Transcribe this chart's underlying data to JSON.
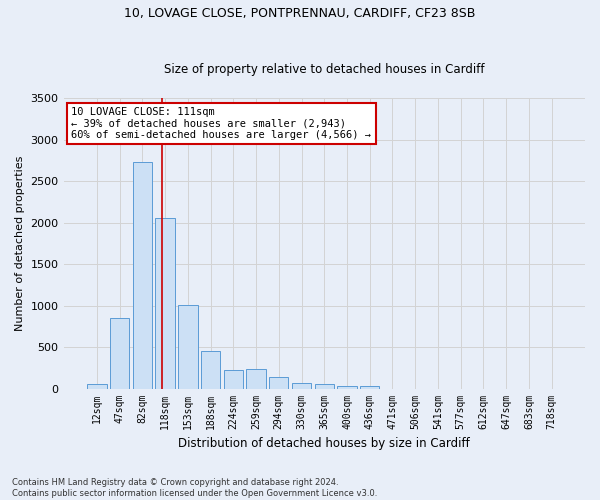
{
  "title1": "10, LOVAGE CLOSE, PONTPRENNAU, CARDIFF, CF23 8SB",
  "title2": "Size of property relative to detached houses in Cardiff",
  "xlabel": "Distribution of detached houses by size in Cardiff",
  "ylabel": "Number of detached properties",
  "footnote1": "Contains HM Land Registry data © Crown copyright and database right 2024.",
  "footnote2": "Contains public sector information licensed under the Open Government Licence v3.0.",
  "annotation_line1": "10 LOVAGE CLOSE: 111sqm",
  "annotation_line2": "← 39% of detached houses are smaller (2,943)",
  "annotation_line3": "60% of semi-detached houses are larger (4,566) →",
  "bar_color": "#cce0f5",
  "bar_edge_color": "#5b9bd5",
  "grid_color": "#d3d3d3",
  "bg_color": "#e8eef8",
  "fig_color": "#e8eef8",
  "annotation_box_color": "#cc0000",
  "vline_color": "#cc0000",
  "categories": [
    "12sqm",
    "47sqm",
    "82sqm",
    "118sqm",
    "153sqm",
    "188sqm",
    "224sqm",
    "259sqm",
    "294sqm",
    "330sqm",
    "365sqm",
    "400sqm",
    "436sqm",
    "471sqm",
    "506sqm",
    "541sqm",
    "577sqm",
    "612sqm",
    "647sqm",
    "683sqm",
    "718sqm"
  ],
  "values": [
    55,
    855,
    2730,
    2060,
    1005,
    455,
    225,
    230,
    135,
    65,
    55,
    30,
    30,
    0,
    0,
    0,
    0,
    0,
    0,
    0,
    0
  ],
  "ylim": [
    0,
    3500
  ],
  "yticks": [
    0,
    500,
    1000,
    1500,
    2000,
    2500,
    3000,
    3500
  ],
  "vline_x": 2.85,
  "figsize": [
    6.0,
    5.0
  ],
  "dpi": 100,
  "title1_fontsize": 9,
  "title2_fontsize": 8.5,
  "ylabel_fontsize": 8,
  "xlabel_fontsize": 8.5,
  "tick_fontsize": 7,
  "annot_fontsize": 7.5,
  "footnote_fontsize": 6
}
